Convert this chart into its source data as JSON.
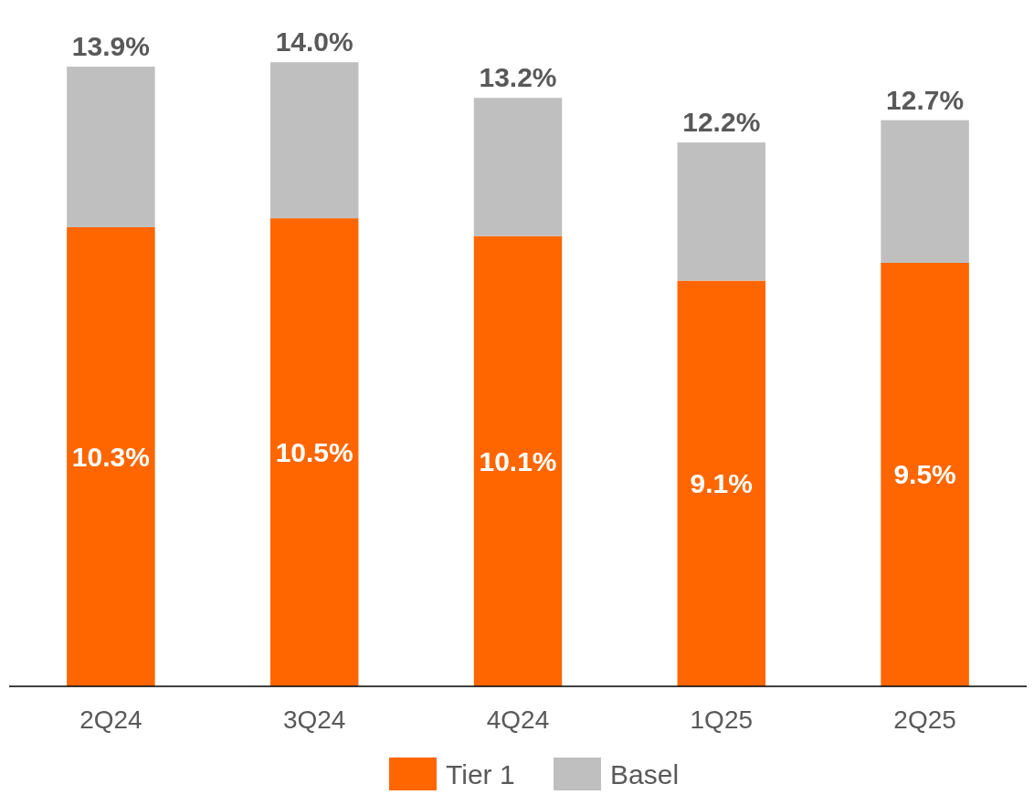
{
  "chart_data": {
    "type": "bar",
    "stacked": true,
    "categories": [
      "2Q24",
      "3Q24",
      "4Q24",
      "1Q25",
      "2Q25"
    ],
    "series": [
      {
        "name": "Tier 1",
        "color": "#ff6600",
        "values": [
          10.3,
          10.5,
          10.1,
          9.1,
          9.5
        ],
        "value_labels": [
          "10.3%",
          "10.5%",
          "10.1%",
          "9.1%",
          "9.5%"
        ]
      },
      {
        "name": "Basel",
        "color": "#bfbfbf",
        "values": [
          3.6,
          3.5,
          3.1,
          3.1,
          3.2
        ]
      }
    ],
    "totals": [
      "13.9%",
      "14.0%",
      "13.2%",
      "12.2%",
      "12.7%"
    ],
    "legend": "bottom"
  }
}
